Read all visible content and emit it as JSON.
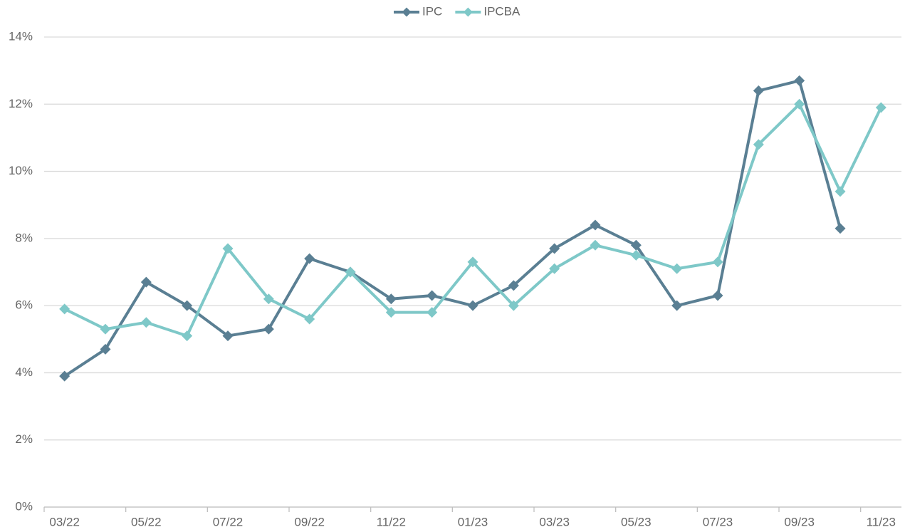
{
  "chart_data": {
    "type": "line",
    "categories": [
      "03/22",
      null,
      "05/22",
      null,
      "07/22",
      null,
      "09/22",
      null,
      "11/22",
      null,
      "01/23",
      null,
      "03/23",
      null,
      "05/23",
      null,
      "07/23",
      null,
      "09/23",
      null,
      "11/23"
    ],
    "series": [
      {
        "name": "IPC",
        "color": "#5a7f93",
        "values": [
          3.9,
          4.7,
          6.7,
          6.0,
          5.1,
          5.3,
          7.4,
          7.0,
          6.2,
          6.3,
          6.0,
          6.6,
          7.7,
          8.4,
          7.8,
          6.0,
          6.3,
          12.4,
          12.7,
          8.3,
          null
        ]
      },
      {
        "name": "IPCBA",
        "color": "#7ec8c8",
        "values": [
          5.9,
          5.3,
          5.5,
          5.1,
          7.7,
          6.2,
          5.6,
          7.0,
          5.8,
          5.8,
          7.3,
          6.0,
          7.1,
          7.8,
          7.5,
          7.1,
          7.3,
          10.8,
          12.0,
          9.4,
          11.9
        ]
      }
    ],
    "ylim": [
      0,
      14
    ],
    "yticks": [
      {
        "value": 0,
        "label": "0%"
      },
      {
        "value": 2,
        "label": "2%"
      },
      {
        "value": 4,
        "label": "4%"
      },
      {
        "value": 6,
        "label": "6%"
      },
      {
        "value": 8,
        "label": "8%"
      },
      {
        "value": 10,
        "label": "10%"
      },
      {
        "value": 12,
        "label": "12%"
      },
      {
        "value": 14,
        "label": "14%"
      }
    ],
    "grid": true,
    "legend": "top"
  }
}
